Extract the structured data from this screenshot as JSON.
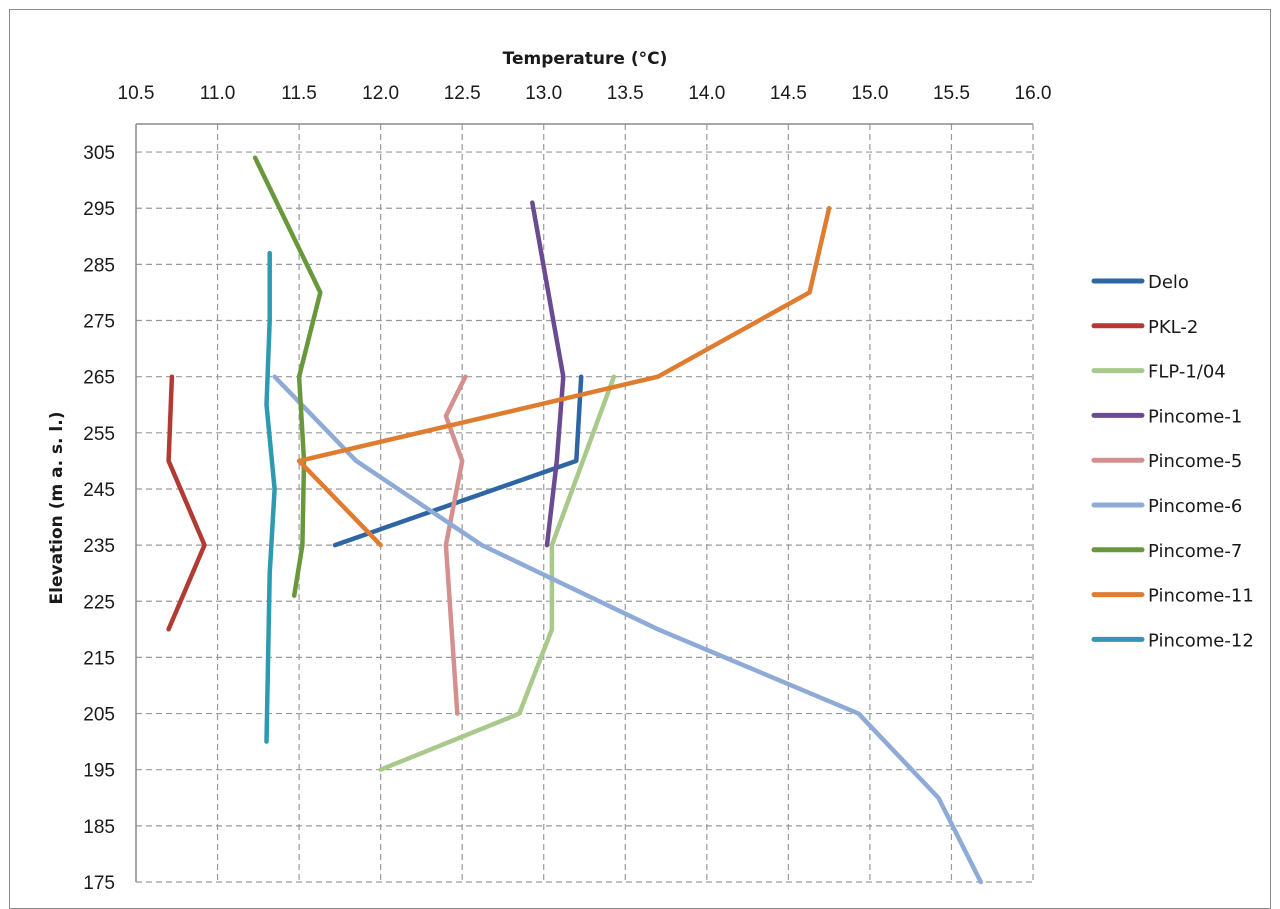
{
  "chart_data": {
    "type": "line",
    "xlabel": "Temperature (°C)",
    "ylabel": "Elevation (m a. s. l.)",
    "xlim": [
      10.5,
      16.0
    ],
    "ylim": [
      175,
      310
    ],
    "x_axis_position": "top",
    "x_ticks": [
      "10.5",
      "11.0",
      "11.5",
      "12.0",
      "12.5",
      "13.0",
      "13.5",
      "14.0",
      "14.5",
      "15.0",
      "15.5",
      "16.0"
    ],
    "y_ticks": [
      "305",
      "295",
      "285",
      "275",
      "265",
      "255",
      "245",
      "235",
      "225",
      "215",
      "205",
      "195",
      "185",
      "175"
    ],
    "grid": true,
    "legend_position": "right",
    "series": [
      {
        "name": "Delo",
        "color": "#2e65a3",
        "points": [
          [
            11.72,
            235
          ],
          [
            13.2,
            250
          ],
          [
            13.23,
            265
          ]
        ]
      },
      {
        "name": "PKL-2",
        "color": "#b23a35",
        "points": [
          [
            10.7,
            220
          ],
          [
            10.92,
            235
          ],
          [
            10.7,
            250
          ],
          [
            10.72,
            265
          ]
        ]
      },
      {
        "name": "FLP-1/04",
        "color": "#a9c98a",
        "points": [
          [
            12.0,
            195
          ],
          [
            12.85,
            205
          ],
          [
            13.05,
            220
          ],
          [
            13.05,
            235
          ],
          [
            13.43,
            265
          ]
        ]
      },
      {
        "name": "Pincome-1",
        "color": "#6a4b91",
        "points": [
          [
            13.02,
            235
          ],
          [
            13.08,
            250
          ],
          [
            13.12,
            265
          ],
          [
            12.93,
            296
          ]
        ]
      },
      {
        "name": "Pincome-5",
        "color": "#d4908e",
        "points": [
          [
            12.47,
            205
          ],
          [
            12.4,
            235
          ],
          [
            12.5,
            250
          ],
          [
            12.4,
            258
          ],
          [
            12.52,
            265
          ]
        ]
      },
      {
        "name": "Pincome-6",
        "color": "#8eaad6",
        "points": [
          [
            11.35,
            265
          ],
          [
            11.85,
            250
          ],
          [
            12.62,
            235
          ],
          [
            13.7,
            220
          ],
          [
            14.93,
            205
          ],
          [
            15.42,
            190
          ],
          [
            15.68,
            175
          ]
        ]
      },
      {
        "name": "Pincome-7",
        "color": "#69983c",
        "points": [
          [
            11.47,
            226
          ],
          [
            11.52,
            235
          ],
          [
            11.53,
            250
          ],
          [
            11.5,
            265
          ],
          [
            11.63,
            280
          ],
          [
            11.23,
            304
          ]
        ]
      },
      {
        "name": "Pincome-11",
        "color": "#e07c30",
        "points": [
          [
            12.0,
            235
          ],
          [
            11.5,
            250
          ],
          [
            13.7,
            265
          ],
          [
            14.63,
            280
          ],
          [
            14.75,
            295
          ]
        ]
      },
      {
        "name": "Pincome-12",
        "color": "#2e9ab2",
        "points": [
          [
            11.3,
            200
          ],
          [
            11.32,
            230
          ],
          [
            11.35,
            245
          ],
          [
            11.3,
            260
          ],
          [
            11.32,
            275
          ],
          [
            11.32,
            287
          ]
        ]
      }
    ]
  }
}
